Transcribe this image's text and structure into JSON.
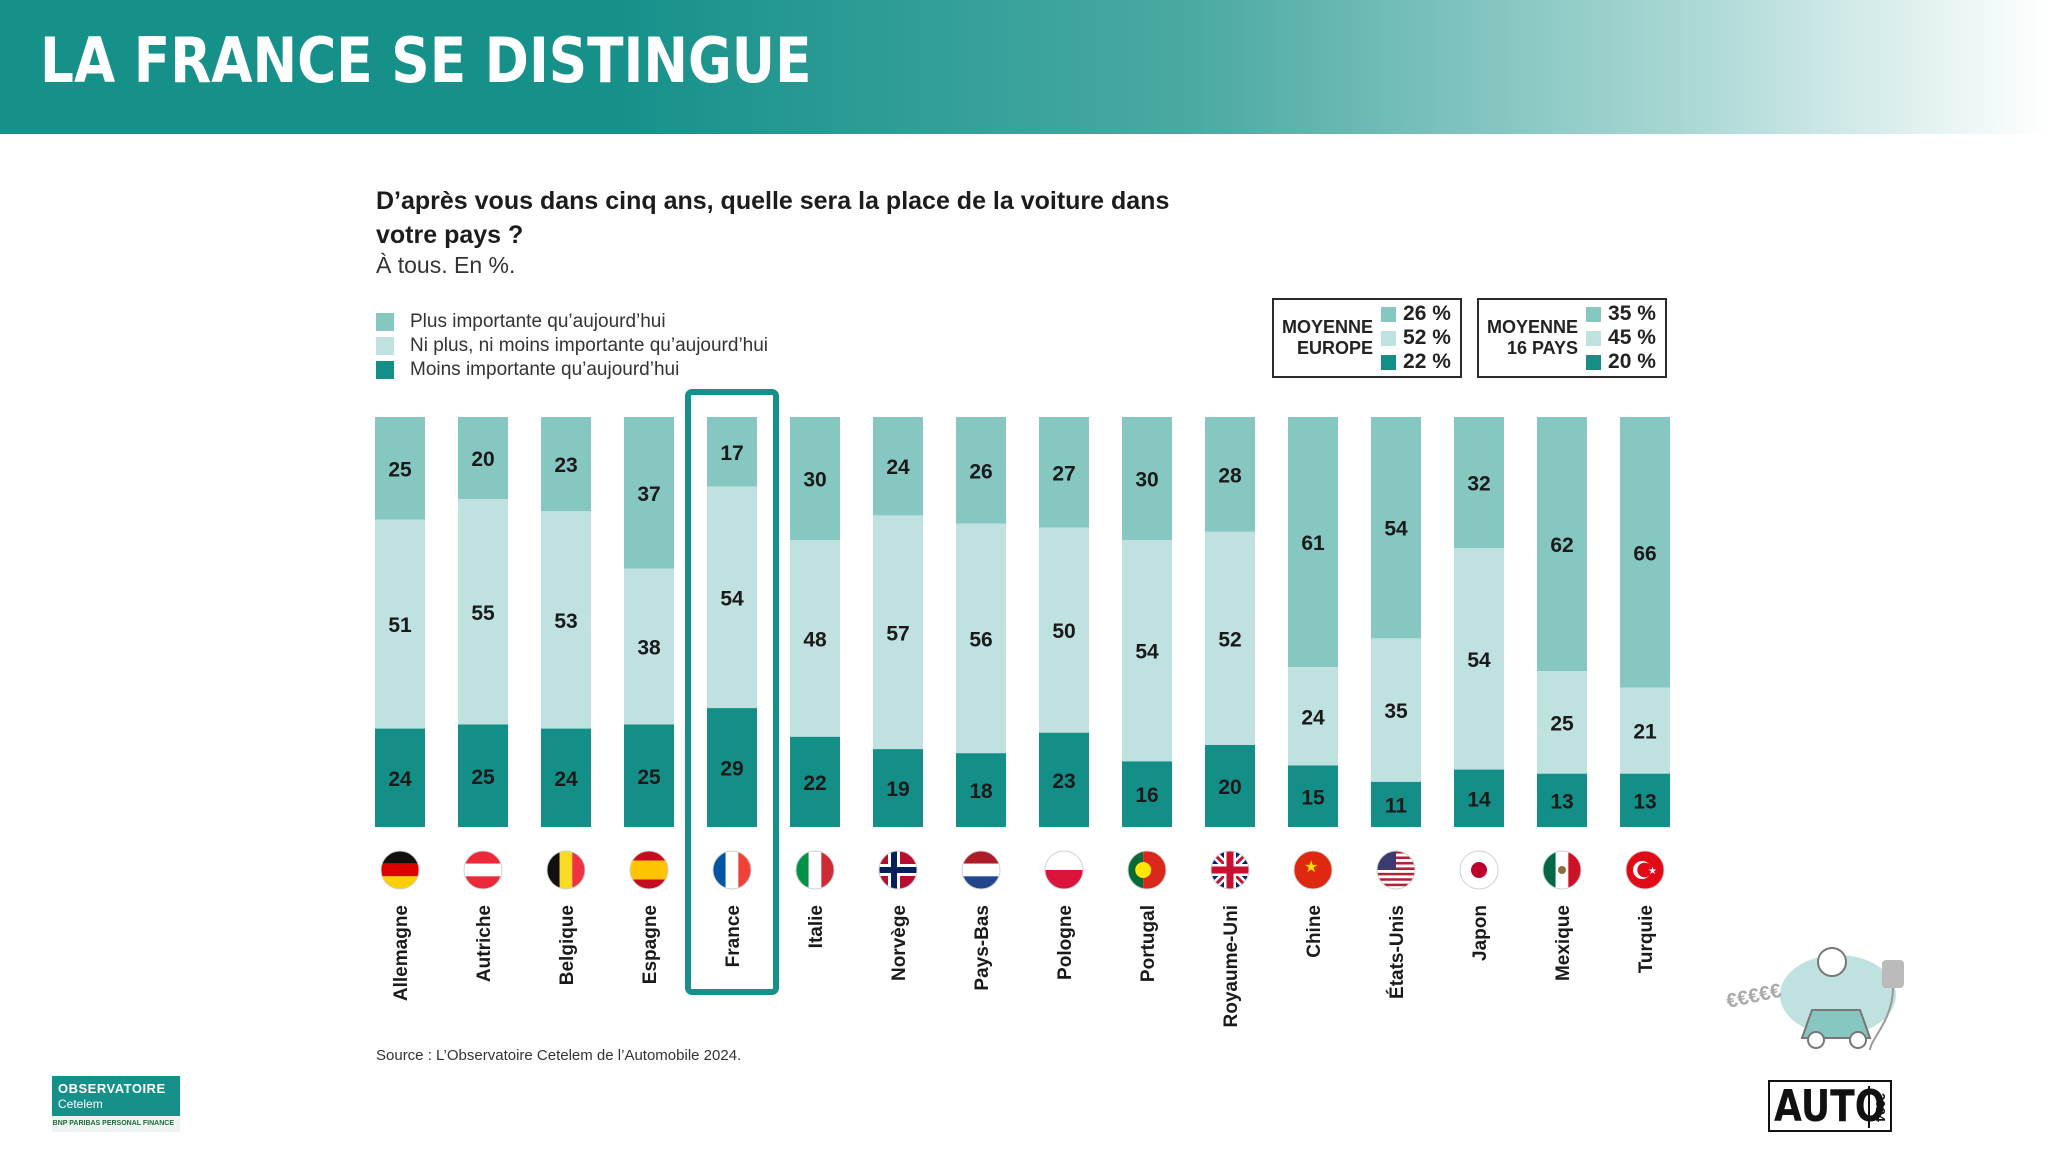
{
  "page": {
    "title": "LA FRANCE SE DISTINGUE",
    "question": "D’après vous dans cinq ans, quelle sera la place de la voiture dans votre pays ?",
    "subtitle": "À tous. En %.",
    "source": "Source : L’Observatoire Cetelem de l’Automobile 2024."
  },
  "colors": {
    "plus": "#86c7c2",
    "ni": "#bfe1df",
    "moins": "#138f88",
    "highlight": "#15918a",
    "banner": "#15918a"
  },
  "legend": [
    {
      "label": "Plus importante qu’aujourd’hui",
      "color": "#86c7c2"
    },
    {
      "label": "Ni plus, ni moins importante qu’aujourd’hui",
      "color": "#bfe1df"
    },
    {
      "label": "Moins importante qu’aujourd’hui",
      "color": "#138f88"
    }
  ],
  "averages": {
    "europe": {
      "title_line1": "MOYENNE",
      "title_line2": "EUROPE",
      "plus": "26 %",
      "ni": "52 %",
      "moins": "22 %"
    },
    "pays16": {
      "title_line1": "MOYENNE",
      "title_line2": "16 PAYS",
      "plus": "35 %",
      "ni": "45 %",
      "moins": "20 %"
    }
  },
  "chart_data": {
    "type": "bar",
    "stacked": true,
    "title": "D’après vous dans cinq ans, quelle sera la place de la voiture dans votre pays ?",
    "unit": "%",
    "categories": [
      "Allemagne",
      "Autriche",
      "Belgique",
      "Espagne",
      "France",
      "Italie",
      "Norvège",
      "Pays-Bas",
      "Pologne",
      "Portugal",
      "Royaume-Uni",
      "Chine",
      "États-Unis",
      "Japon",
      "Mexique",
      "Turquie"
    ],
    "highlight": "France",
    "series": [
      {
        "name": "Plus importante qu’aujourd’hui",
        "values": [
          25,
          20,
          23,
          37,
          17,
          30,
          24,
          26,
          27,
          30,
          28,
          61,
          54,
          32,
          62,
          66
        ]
      },
      {
        "name": "Ni plus, ni moins importante qu’aujourd’hui",
        "values": [
          51,
          55,
          53,
          38,
          54,
          48,
          57,
          56,
          50,
          54,
          52,
          24,
          35,
          54,
          25,
          21
        ]
      },
      {
        "name": "Moins importante qu’aujourd’hui",
        "values": [
          24,
          25,
          24,
          25,
          29,
          22,
          19,
          18,
          23,
          16,
          20,
          15,
          11,
          14,
          13,
          13
        ]
      }
    ],
    "ylim": [
      0,
      100
    ],
    "flags": [
      "germany-flag",
      "austria-flag",
      "belgium-flag",
      "spain-flag",
      "france-flag",
      "italy-flag",
      "norway-flag",
      "netherlands-flag",
      "poland-flag",
      "portugal-flag",
      "uk-flag",
      "china-flag",
      "usa-flag",
      "japan-flag",
      "mexico-flag",
      "turkey-flag"
    ]
  },
  "logos": {
    "observatoire_line1": "OBSERVATOIRE",
    "observatoire_line2": "Cetelem",
    "bnp": "BNP PARIBAS PERSONAL FINANCE",
    "auto": "AUTO",
    "auto_year": "2024",
    "illustration_text": "€€€€€"
  }
}
